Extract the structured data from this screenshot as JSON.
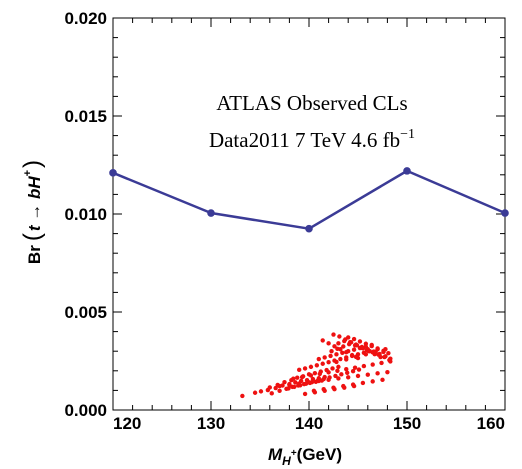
{
  "chart_data": {
    "type": "scatter",
    "annotations": {
      "line1": "ATLAS Observed CLs",
      "line2_prefix": "Data2011   7 TeV   4.6 fb",
      "line2_sup": "−1"
    },
    "xlabel": {
      "main": "M",
      "sub": "H",
      "subsup": "+",
      "unit": "(GeV)"
    },
    "ylabel": {
      "prefix": "Br",
      "inner": "t → bH",
      "sup": "+"
    },
    "xlim": [
      120,
      160
    ],
    "ylim": [
      0.0,
      0.02
    ],
    "x_ticks": [
      120,
      130,
      140,
      150,
      160
    ],
    "x_tick_labels": [
      "120",
      "130",
      "140",
      "150",
      "160"
    ],
    "y_ticks": [
      0.0,
      0.005,
      0.01,
      0.015,
      0.02
    ],
    "y_tick_labels": [
      "0.000",
      "0.005",
      "0.010",
      "0.015",
      "0.020"
    ],
    "limit_line": {
      "color": "#3b3b96",
      "x": [
        120,
        130,
        140,
        150,
        160
      ],
      "y": [
        0.0121,
        0.01005,
        0.00925,
        0.0122,
        0.01005
      ]
    },
    "scatter_points": {
      "color": "#ee1111",
      "x": [
        133.2,
        134.5,
        135.1,
        135.8,
        136.2,
        136.6,
        137.0,
        137.3,
        137.7,
        138.0,
        138.3,
        138.6,
        138.9,
        139.2,
        139.5,
        139.8,
        140.1,
        140.4,
        140.7,
        141.0,
        141.3,
        141.6,
        136.8,
        137.5,
        138.2,
        138.8,
        139.4,
        140.0,
        140.6,
        141.2,
        141.8,
        142.4,
        143.0,
        137.9,
        138.5,
        139.1,
        139.7,
        140.3,
        140.9,
        141.5,
        142.1,
        142.7,
        143.3,
        143.9,
        144.5,
        145.1,
        139.0,
        139.6,
        140.2,
        140.8,
        141.4,
        142.0,
        142.6,
        143.2,
        143.8,
        144.4,
        145.0,
        145.6,
        146.2,
        141.0,
        141.6,
        142.2,
        142.8,
        143.4,
        144.0,
        144.6,
        145.2,
        145.8,
        146.4,
        147.0,
        147.6,
        142.3,
        142.9,
        143.5,
        144.1,
        144.7,
        145.3,
        145.9,
        146.5,
        147.1,
        147.7,
        148.2,
        143.0,
        143.6,
        144.2,
        144.8,
        145.4,
        146.0,
        146.6,
        147.2,
        147.8,
        148.3,
        144.0,
        144.6,
        145.2,
        145.8,
        146.4,
        147.0,
        147.6,
        148.1,
        142.5,
        143.1,
        143.7,
        144.3,
        144.9,
        145.5,
        146.1,
        146.7,
        147.3,
        141.4,
        142.0,
        142.6,
        143.2,
        143.8,
        144.4,
        145.0,
        136.0,
        137.0,
        138.0,
        139.0,
        140.0,
        141.0,
        142.0,
        143.0,
        144.0,
        145.0,
        146.0,
        147.0,
        148.0,
        138.4,
        139.3,
        140.2,
        141.1,
        142.0,
        142.9,
        143.8,
        144.7,
        145.6,
        146.5,
        147.4,
        148.3,
        140.5,
        141.5,
        142.5,
        143.5,
        144.5,
        145.5,
        146.5,
        147.5,
        142.8,
        143.8,
        144.8,
        145.8,
        146.8,
        147.8,
        139.6,
        140.6,
        141.6,
        142.6,
        143.6,
        144.6
      ],
      "y": [
        0.00072,
        0.00088,
        0.00095,
        0.00102,
        0.00085,
        0.00112,
        0.00098,
        0.00125,
        0.00108,
        0.00132,
        0.00118,
        0.00141,
        0.00125,
        0.00148,
        0.00132,
        0.00152,
        0.00138,
        0.00158,
        0.00144,
        0.00162,
        0.0015,
        0.00168,
        0.00128,
        0.00142,
        0.00152,
        0.00165,
        0.00172,
        0.00182,
        0.00188,
        0.00196,
        0.00204,
        0.00212,
        0.0022,
        0.0011,
        0.00118,
        0.00126,
        0.00134,
        0.00142,
        0.0015,
        0.00158,
        0.00166,
        0.00174,
        0.00182,
        0.0019,
        0.00198,
        0.00206,
        0.00205,
        0.00212,
        0.0022,
        0.00228,
        0.00236,
        0.00244,
        0.00252,
        0.0026,
        0.00268,
        0.00276,
        0.00284,
        0.00292,
        0.003,
        0.0026,
        0.00268,
        0.00276,
        0.00284,
        0.00292,
        0.003,
        0.00308,
        0.00316,
        0.00324,
        0.00332,
        0.0031,
        0.00296,
        0.003,
        0.00312,
        0.00324,
        0.00336,
        0.0033,
        0.00318,
        0.00306,
        0.00294,
        0.00282,
        0.0027,
        0.00255,
        0.0034,
        0.00352,
        0.00346,
        0.00334,
        0.00322,
        0.0031,
        0.00298,
        0.00286,
        0.00274,
        0.00262,
        0.0037,
        0.00362,
        0.0035,
        0.00338,
        0.00326,
        0.00314,
        0.00302,
        0.0029,
        0.00385,
        0.00375,
        0.0036,
        0.00345,
        0.0033,
        0.00315,
        0.003,
        0.00285,
        0.0027,
        0.00355,
        0.0034,
        0.00325,
        0.0031,
        0.00295,
        0.0028,
        0.00265,
        0.00115,
        0.00122,
        0.00128,
        0.00135,
        0.00141,
        0.00148,
        0.00154,
        0.00161,
        0.00167,
        0.00174,
        0.0018,
        0.00187,
        0.00193,
        0.0016,
        0.00168,
        0.00176,
        0.00184,
        0.00192,
        0.002,
        0.00208,
        0.00216,
        0.00224,
        0.00232,
        0.0024,
        0.00248,
        0.00098,
        0.00106,
        0.00114,
        0.00122,
        0.0013,
        0.00138,
        0.00146,
        0.00154,
        0.00245,
        0.00258,
        0.00271,
        0.00284,
        0.00297,
        0.0031,
        0.00082,
        0.0009,
        0.00098,
        0.00106,
        0.00114,
        0.00122
      ]
    }
  }
}
